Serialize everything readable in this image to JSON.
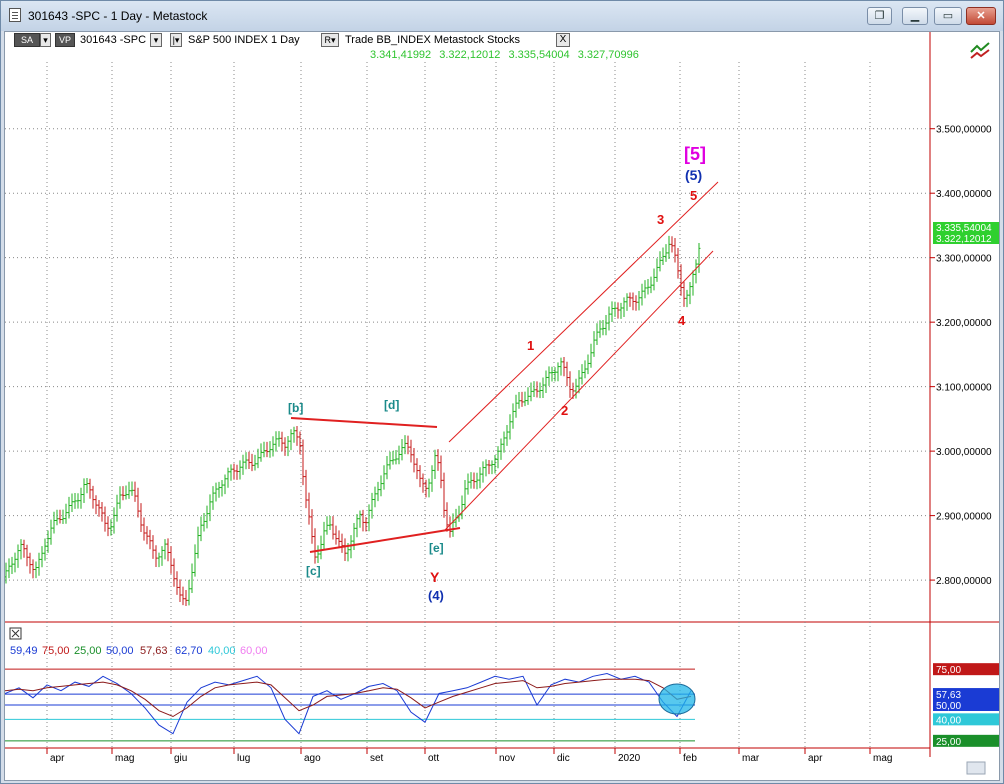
{
  "window": {
    "title": "301643 -SPC - 1 Day - Metastock"
  },
  "toolbar": {
    "sa": "SA",
    "vp": "VP",
    "symbol": "301643 -SPC",
    "index_name": "S&P 500 INDEX  1 Day",
    "r_label": "R",
    "trade_label": "Trade  BB_INDEX  Metastock  Stocks",
    "close": "X"
  },
  "bb_values": [
    "3.341,41992",
    "3.322,12012",
    "3.335,54004",
    "3.327,70996"
  ],
  "chart_data": [
    {
      "type": "line",
      "title": "301643 -SPC  S&P 500 INDEX 1 Day",
      "yticks": [
        "3.500,00000",
        "3.400,00000",
        "3.300,00000",
        "3.200,00000",
        "3.100,00000",
        "3.000,00000",
        "2.900,00000",
        "2.800,00000"
      ],
      "ytick_values": [
        3500,
        3400,
        3300,
        3200,
        3100,
        3000,
        2900,
        2800
      ],
      "ylim": [
        2735,
        3650
      ],
      "months": [
        "apr",
        "mag",
        "giu",
        "lug",
        "ago",
        "set",
        "ott",
        "nov",
        "dic",
        "2020",
        "feb",
        "mar",
        "apr",
        "mag"
      ],
      "current_labels": [
        "3.335,54004",
        "3.322,12012"
      ],
      "series": [
        {
          "name": "SPC",
          "x": [
            0,
            5,
            10,
            15,
            20,
            25,
            30,
            35,
            40,
            45,
            50,
            55,
            60,
            65,
            70,
            75,
            80,
            85,
            90,
            95,
            100,
            105,
            110,
            115,
            120,
            125,
            130,
            135,
            140,
            145,
            150,
            155,
            160,
            165,
            170,
            175,
            180,
            185,
            190,
            195,
            200,
            205,
            210,
            215,
            220,
            225,
            230,
            235,
            240,
            245,
            250,
            255,
            260,
            265,
            270,
            275,
            280,
            285,
            290,
            295,
            300,
            305,
            310,
            315,
            320,
            325,
            330,
            335,
            340,
            345,
            350,
            355,
            360,
            365,
            370,
            375,
            380,
            385,
            390,
            395,
            400,
            405,
            410,
            415,
            420,
            425,
            430,
            435,
            440,
            445,
            450,
            455,
            460,
            465,
            470,
            475,
            480,
            485,
            490,
            495,
            500,
            505,
            510,
            515,
            520,
            525,
            530,
            535,
            540,
            545,
            550,
            555,
            560,
            565,
            570,
            575,
            580,
            585,
            590,
            595,
            600,
            605,
            610,
            615,
            620,
            625,
            630,
            635,
            640,
            645,
            650,
            655,
            660,
            665,
            670,
            675,
            680,
            685,
            690,
            695
          ],
          "values": [
            2805,
            2822,
            2838,
            2852,
            2842,
            2830,
            2812,
            2830,
            2858,
            2876,
            2889,
            2898,
            2903,
            2912,
            2925,
            2932,
            2947,
            2940,
            2924,
            2906,
            2886,
            2884,
            2904,
            2928,
            2938,
            2941,
            2925,
            2896,
            2872,
            2855,
            2838,
            2842,
            2850,
            2832,
            2802,
            2772,
            2762,
            2800,
            2838,
            2880,
            2900,
            2920,
            2935,
            2950,
            2958,
            2966,
            2972,
            2978,
            2980,
            2982,
            2985,
            2990,
            3000,
            3008,
            3013,
            3016,
            3012,
            3022,
            3027,
            3014,
            2932,
            2882,
            2840,
            2850,
            2876,
            2888,
            2870,
            2852,
            2842,
            2860,
            2882,
            2900,
            2890,
            2912,
            2930,
            2952,
            2970,
            2980,
            2992,
            3000,
            3006,
            3004,
            2980,
            2952,
            2942,
            2960,
            2988,
            2970,
            2900,
            2872,
            2892,
            2910,
            2940,
            2950,
            2958,
            2965,
            2972,
            2982,
            2990,
            3000,
            3025,
            3050,
            3066,
            3078,
            3084,
            3086,
            3092,
            3100,
            3108,
            3118,
            3128,
            3140,
            3120,
            3100,
            3098,
            3110,
            3130,
            3150,
            3172,
            3190,
            3200,
            3212,
            3220,
            3226,
            3232,
            3234,
            3236,
            3240,
            3248,
            3260,
            3276,
            3290,
            3308,
            3330,
            3298,
            3262,
            3238,
            3250,
            3282,
            3330
          ]
        }
      ],
      "annotations": [
        {
          "text": "[5]",
          "color": "#e000e0"
        },
        {
          "text": "(5)",
          "color": "#1030b0"
        },
        {
          "text": "5",
          "color": "#e01010"
        },
        {
          "text": "3",
          "color": "#e01010"
        },
        {
          "text": "4",
          "color": "#e01010"
        },
        {
          "text": "1",
          "color": "#e01010"
        },
        {
          "text": "2",
          "color": "#e01010"
        },
        {
          "text": "[b]",
          "color": "#1a8a8a"
        },
        {
          "text": "[d]",
          "color": "#1a8a8a"
        },
        {
          "text": "[c]",
          "color": "#1a8a8a"
        },
        {
          "text": "[e]",
          "color": "#1a8a8a"
        },
        {
          "text": "Y",
          "color": "#e01010"
        },
        {
          "text": "(4)",
          "color": "#1030b0"
        }
      ]
    },
    {
      "type": "line",
      "title": "Oscillator",
      "legend_values": [
        {
          "text": "59,49",
          "color": "#1a3bd4"
        },
        {
          "text": "75,00",
          "color": "#c01818"
        },
        {
          "text": "25,00",
          "color": "#1a8f2a"
        },
        {
          "text": "50,00",
          "color": "#1a3bd4"
        },
        {
          "text": "57,63",
          "color": "#8b1a1a"
        },
        {
          "text": "62,70",
          "color": "#1a3bd4"
        },
        {
          "text": "40,00",
          "color": "#2ec8d8"
        },
        {
          "text": "60,00",
          "color": "#f07cf0"
        }
      ],
      "levels": [
        {
          "label": "75,00",
          "value": 75,
          "color": "#c01818"
        },
        {
          "label": "57,63",
          "value": 57.63,
          "color": "#1a3bd4"
        },
        {
          "label": "50,00",
          "value": 50,
          "color": "#1a3bd4"
        },
        {
          "label": "40,00",
          "value": 40,
          "color": "#2ec8d8"
        },
        {
          "label": "25,00",
          "value": 25,
          "color": "#1a8f2a"
        }
      ],
      "ylim": [
        20,
        80
      ],
      "series": [
        {
          "name": "fast",
          "x": [
            0,
            14,
            28,
            42,
            56,
            70,
            84,
            98,
            112,
            126,
            140,
            154,
            168,
            182,
            196,
            210,
            224,
            238,
            252,
            266,
            280,
            294,
            308,
            322,
            336,
            350,
            364,
            378,
            392,
            406,
            420,
            434,
            448,
            462,
            476,
            490,
            504,
            518,
            532,
            546,
            560,
            574,
            588,
            602,
            616,
            630,
            644,
            658,
            672,
            686
          ],
          "values": [
            58,
            62,
            55,
            64,
            60,
            66,
            63,
            70,
            65,
            58,
            48,
            36,
            30,
            52,
            62,
            66,
            64,
            67,
            70,
            62,
            40,
            30,
            56,
            60,
            54,
            58,
            63,
            65,
            60,
            45,
            38,
            58,
            60,
            62,
            66,
            70,
            68,
            70,
            50,
            64,
            68,
            66,
            70,
            72,
            68,
            70,
            66,
            52,
            42,
            60
          ]
        },
        {
          "name": "slow",
          "x": [
            0,
            14,
            28,
            42,
            56,
            70,
            84,
            98,
            112,
            126,
            140,
            154,
            168,
            182,
            196,
            210,
            224,
            238,
            252,
            266,
            280,
            294,
            308,
            322,
            336,
            350,
            364,
            378,
            392,
            406,
            420,
            434,
            448,
            462,
            476,
            490,
            504,
            518,
            532,
            546,
            560,
            574,
            588,
            602,
            616,
            630,
            644,
            658,
            672,
            686
          ],
          "values": [
            60,
            61,
            60,
            62,
            63,
            64,
            65,
            66,
            64,
            60,
            54,
            46,
            42,
            48,
            56,
            62,
            64,
            65,
            66,
            64,
            55,
            46,
            50,
            56,
            57,
            58,
            60,
            62,
            61,
            55,
            48,
            52,
            56,
            59,
            62,
            65,
            66,
            67,
            62,
            63,
            65,
            66,
            67,
            68,
            68,
            68,
            67,
            62,
            54,
            56
          ]
        }
      ]
    }
  ]
}
